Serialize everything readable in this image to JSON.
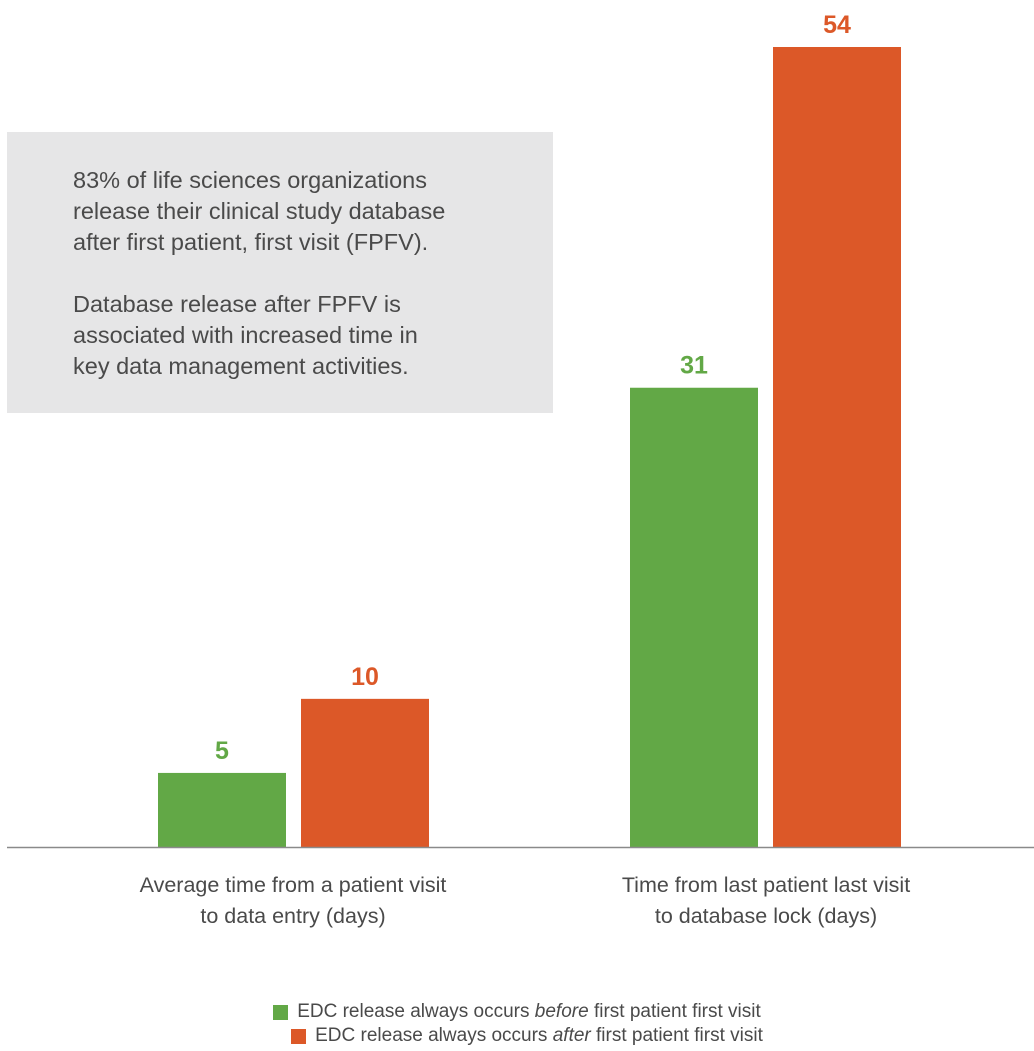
{
  "callout": {
    "paragraphs": [
      [
        "83% of life sciences organizations",
        "release their clinical study database",
        "after first patient, first visit (FPFV)."
      ],
      [
        "Database release after FPFV is",
        "associated with increased time in",
        "key data management activities."
      ]
    ]
  },
  "colors": {
    "before": "#62a846",
    "after": "#dc5828",
    "axis": "#8a8a8a",
    "text": "#4a4a4a"
  },
  "chart_data": {
    "type": "bar",
    "categories": [
      [
        "Average time from a patient visit",
        "to data entry (days)"
      ],
      [
        "Time from last patient last visit",
        "to database lock (days)"
      ]
    ],
    "series": [
      {
        "name": "EDC release always occurs before first patient first visit",
        "values": [
          5,
          31
        ]
      },
      {
        "name": "EDC release always occurs after first patient first visit",
        "values": [
          10,
          54
        ]
      }
    ],
    "ylim": [
      0,
      54
    ],
    "grid": false,
    "data_labels": true,
    "legend_position": "bottom-center"
  },
  "legend": [
    {
      "prefix": "EDC release always occurs ",
      "emph": "before",
      "suffix": " first patient first visit"
    },
    {
      "prefix": "EDC release always occurs ",
      "emph": "after",
      "suffix": " first patient first visit"
    }
  ]
}
